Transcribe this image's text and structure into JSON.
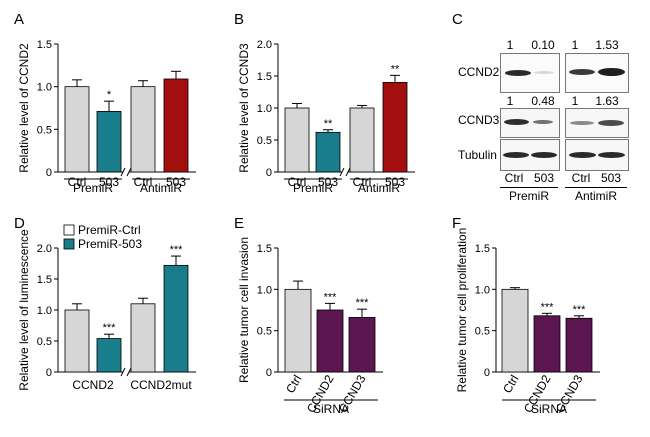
{
  "panels": {
    "A": "A",
    "B": "B",
    "C": "C",
    "D": "D",
    "E": "E",
    "F": "F"
  },
  "chart_data": [
    {
      "id": "A",
      "type": "bar",
      "ylabel": "Relative level of CCND2",
      "ylim": [
        0,
        1.5
      ],
      "yticks": [
        "0",
        "0.5",
        "1.0",
        "1.5"
      ],
      "categories": [
        "Ctrl",
        "503",
        "Ctrl",
        "503"
      ],
      "values": [
        1.0,
        0.71,
        1.0,
        1.09
      ],
      "errors": [
        0.08,
        0.12,
        0.07,
        0.09
      ],
      "colors": [
        "#d6d6d6",
        "#1a7d8c",
        "#d6d6d6",
        "#a30f0f"
      ],
      "sig": [
        "",
        "*",
        "",
        ""
      ],
      "groups": [
        "PremiR",
        "AntimiR"
      ],
      "axis_break": true
    },
    {
      "id": "B",
      "type": "bar",
      "ylabel": "Relative level of CCND3",
      "ylim": [
        0,
        2.0
      ],
      "yticks": [
        "0",
        "0.5",
        "1.0",
        "1.5",
        "2.0"
      ],
      "categories": [
        "Ctrl",
        "503",
        "Ctrl",
        "503"
      ],
      "values": [
        1.0,
        0.62,
        1.0,
        1.4
      ],
      "errors": [
        0.07,
        0.04,
        0.04,
        0.11
      ],
      "colors": [
        "#d6d6d6",
        "#1a7d8c",
        "#d6d6d6",
        "#a30f0f"
      ],
      "sig": [
        "",
        "**",
        "",
        "**"
      ],
      "groups": [
        "PremiR",
        "AntimiR"
      ],
      "axis_break": true
    },
    {
      "id": "D",
      "type": "bar",
      "ylabel": "Relative level of luminescence",
      "ylim": [
        0,
        2.0
      ],
      "yticks": [
        "0",
        "0.5",
        "1.0",
        "1.5",
        "2.0"
      ],
      "categories": [
        "",
        "",
        "",
        ""
      ],
      "values": [
        1.0,
        0.54,
        1.1,
        1.72
      ],
      "errors": [
        0.1,
        0.07,
        0.09,
        0.15
      ],
      "colors": [
        "#d6d6d6",
        "#1a7d8c",
        "#d6d6d6",
        "#1a7d8c"
      ],
      "sig": [
        "",
        "***",
        "",
        "***"
      ],
      "groups": [
        "CCND2",
        "CCND2mut"
      ],
      "axis_break": true,
      "legend": [
        {
          "label": "PremiR-Ctrl",
          "color": "#ffffff"
        },
        {
          "label": "PremiR-503",
          "color": "#1a7d8c"
        }
      ]
    },
    {
      "id": "E",
      "type": "bar",
      "ylabel": "Relative tumor cell invasion",
      "ylim": [
        0,
        1.5
      ],
      "yticks": [
        "0",
        "0.5",
        "1.0",
        "1.5"
      ],
      "categories": [
        "Ctrl",
        "CCND2",
        "CCND3"
      ],
      "values": [
        1.0,
        0.75,
        0.66
      ],
      "errors": [
        0.1,
        0.08,
        0.1
      ],
      "colors": [
        "#d6d6d6",
        "#5c1650",
        "#5c1650"
      ],
      "sig": [
        "",
        "***",
        "***"
      ],
      "groups": [
        "SiRNA"
      ],
      "axis_break": false
    },
    {
      "id": "F",
      "type": "bar",
      "ylabel": "Relative tumor cell proliferation",
      "ylim": [
        0,
        1.5
      ],
      "yticks": [
        "0",
        "0.5",
        "1.0",
        "1.5"
      ],
      "categories": [
        "Ctrl",
        "CCND2",
        "CCND3"
      ],
      "values": [
        1.0,
        0.68,
        0.65
      ],
      "errors": [
        0.02,
        0.03,
        0.03
      ],
      "colors": [
        "#d6d6d6",
        "#5c1650",
        "#5c1650"
      ],
      "sig": [
        "",
        "***",
        "***"
      ],
      "groups": [
        "SiRNA"
      ],
      "axis_break": false
    }
  ],
  "blot": {
    "rows": [
      {
        "name": "CCND2",
        "quant": [
          "1",
          "0.10",
          "1",
          "1.53"
        ]
      },
      {
        "name": "CCND3",
        "quant": [
          "1",
          "0.48",
          "1",
          "1.63"
        ]
      },
      {
        "name": "Tubulin",
        "quant": []
      }
    ],
    "lanes": [
      "Ctrl",
      "503",
      "Ctrl",
      "503"
    ],
    "groups": [
      "PremiR",
      "AntimiR"
    ]
  }
}
